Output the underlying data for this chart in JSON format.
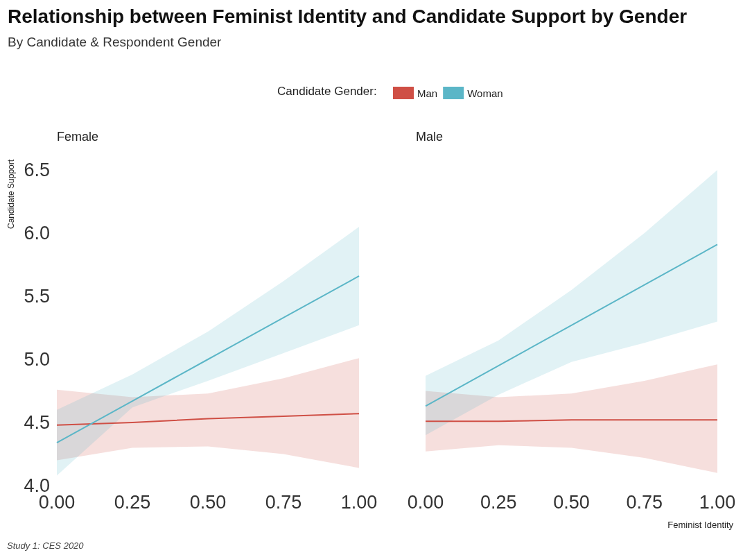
{
  "chart_data": [
    {
      "type": "line",
      "title": "Relationship between Feminist Identity and Candidate Support by Gender",
      "subtitle": "By Candidate & Respondent Gender",
      "ylabel": "Candidate Support",
      "legend_title": "Candidate Gender:",
      "legend": "top",
      "grid": false,
      "marker": "none",
      "annotations": [
        "Female",
        "Study 1: CES 2020"
      ],
      "x": [
        0,
        0.25,
        0.5,
        0.75,
        1
      ],
      "xlim": [
        0,
        1
      ],
      "xticks": [
        {
          "value": 0,
          "label": "0.00"
        },
        {
          "value": 0.25,
          "label": "0.25"
        },
        {
          "value": 0.5,
          "label": "0.50"
        },
        {
          "value": 0.75,
          "label": "0.75"
        },
        {
          "value": 1,
          "label": "1.00"
        }
      ],
      "ylim": [
        4.0,
        6.5
      ],
      "yticks": [
        {
          "value": 4,
          "label": "4.0"
        },
        {
          "value": 4.5,
          "label": "4.5"
        },
        {
          "value": 5,
          "label": "5.0"
        },
        {
          "value": 5.5,
          "label": "5.5"
        },
        {
          "value": 6,
          "label": "6.0"
        },
        {
          "value": 6.5,
          "label": "6.5"
        }
      ],
      "series": [
        {
          "name": "Man",
          "color": "#cf4f45",
          "values": [
            4.48,
            4.5,
            4.53,
            4.55,
            4.57
          ],
          "lower": [
            4.2,
            4.3,
            4.31,
            4.25,
            4.14
          ],
          "upper": [
            4.76,
            4.7,
            4.73,
            4.85,
            5.01
          ]
        },
        {
          "name": "Woman",
          "color": "#5bb6c7",
          "values": [
            4.34,
            4.67,
            5.0,
            5.33,
            5.66
          ],
          "lower": [
            4.08,
            4.62,
            4.83,
            5.05,
            5.27
          ],
          "upper": [
            4.6,
            4.88,
            5.22,
            5.62,
            6.05
          ]
        }
      ]
    },
    {
      "type": "line",
      "xlabel": "Feminist Identity",
      "grid": false,
      "marker": "none",
      "tick_labels": "x",
      "annotations": [
        "Male"
      ],
      "x": [
        0,
        0.25,
        0.5,
        0.75,
        1
      ],
      "xlim": [
        0,
        1
      ],
      "xticks": [
        {
          "value": 0,
          "label": "0.00"
        },
        {
          "value": 0.25,
          "label": "0.25"
        },
        {
          "value": 0.5,
          "label": "0.50"
        },
        {
          "value": 0.75,
          "label": "0.75"
        },
        {
          "value": 1,
          "label": "1.00"
        }
      ],
      "ylim": [
        4.0,
        6.5
      ],
      "series": [
        {
          "color": "#cf4f45",
          "values": [
            4.51,
            4.51,
            4.52,
            4.52,
            4.52
          ],
          "lower": [
            4.27,
            4.32,
            4.3,
            4.22,
            4.1
          ],
          "upper": [
            4.75,
            4.7,
            4.73,
            4.83,
            4.96
          ]
        },
        {
          "color": "#5bb6c7",
          "values": [
            4.63,
            4.95,
            5.27,
            5.59,
            5.91
          ],
          "lower": [
            4.4,
            4.72,
            4.98,
            5.13,
            5.3
          ],
          "upper": [
            4.87,
            5.15,
            5.55,
            6.0,
            6.5
          ]
        }
      ]
    }
  ]
}
